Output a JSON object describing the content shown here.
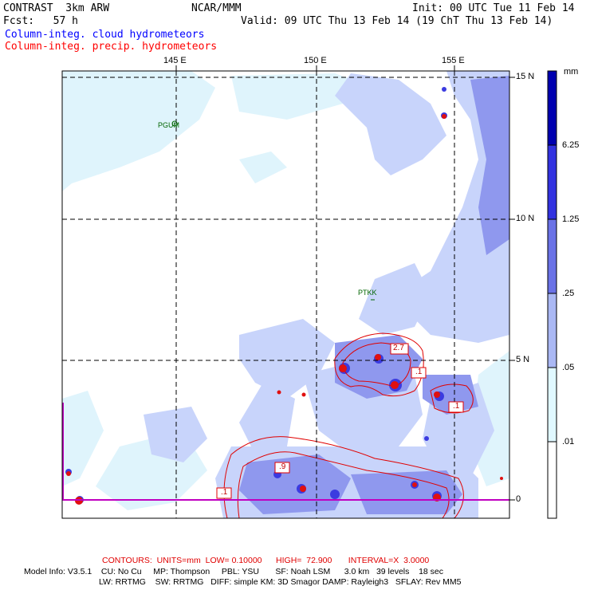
{
  "header": {
    "model": "CONTRAST  3km ARW",
    "center": "NCAR/MMM",
    "init": "Init: 00 UTC Tue 11 Feb 14",
    "fcst": "Fcst:   57 h",
    "valid": "Valid: 09 UTC Thu 13 Feb 14 (19 ChT Thu 13 Feb 14)",
    "field1": "Column-integ. cloud hydrometeors",
    "field2": "Column-integ. precip. hydrometeors"
  },
  "colors": {
    "field1": "#0000ff",
    "field2": "#ff0000",
    "shade_01": "#e0f8ff",
    "shade_05": "#c8d8ff",
    "shade_25": "#aab8f4",
    "shade_125": "#6a72e6",
    "shade_625": "#3232e0",
    "shade_max": "#0000b0",
    "contour": "#e00000",
    "grid": "#000000"
  },
  "map": {
    "lon_labels": [
      "145 E",
      "150 E",
      "155 E"
    ],
    "lat_labels": [
      "15 N",
      "10 N",
      "5 N",
      "0"
    ],
    "stations": [
      "PGUM",
      "PTKK"
    ],
    "contour_labels": [
      "2.7",
      ".1",
      ".1",
      ".9",
      ".1"
    ]
  },
  "colorbar": {
    "unit": "mm",
    "labels": [
      "6.25",
      "1.25",
      ".25",
      ".05",
      ".01"
    ]
  },
  "footer": {
    "contours": "CONTOURS:  UNITS=mm  LOW= 0.10000      HIGH=  72.900       INTERVAL=X  3.0000",
    "line1": "Model Info: V3.5.1    CU: No Cu     MP: Thompson     PBL: YSU       SF: Noah LSM      3.0 km   39 levels    18 sec",
    "line2": "LW: RRTMG    SW: RRTMG   DIFF: simple KM: 3D Smagor DAMP: Rayleigh3   SFLAY: Rev MM5"
  }
}
